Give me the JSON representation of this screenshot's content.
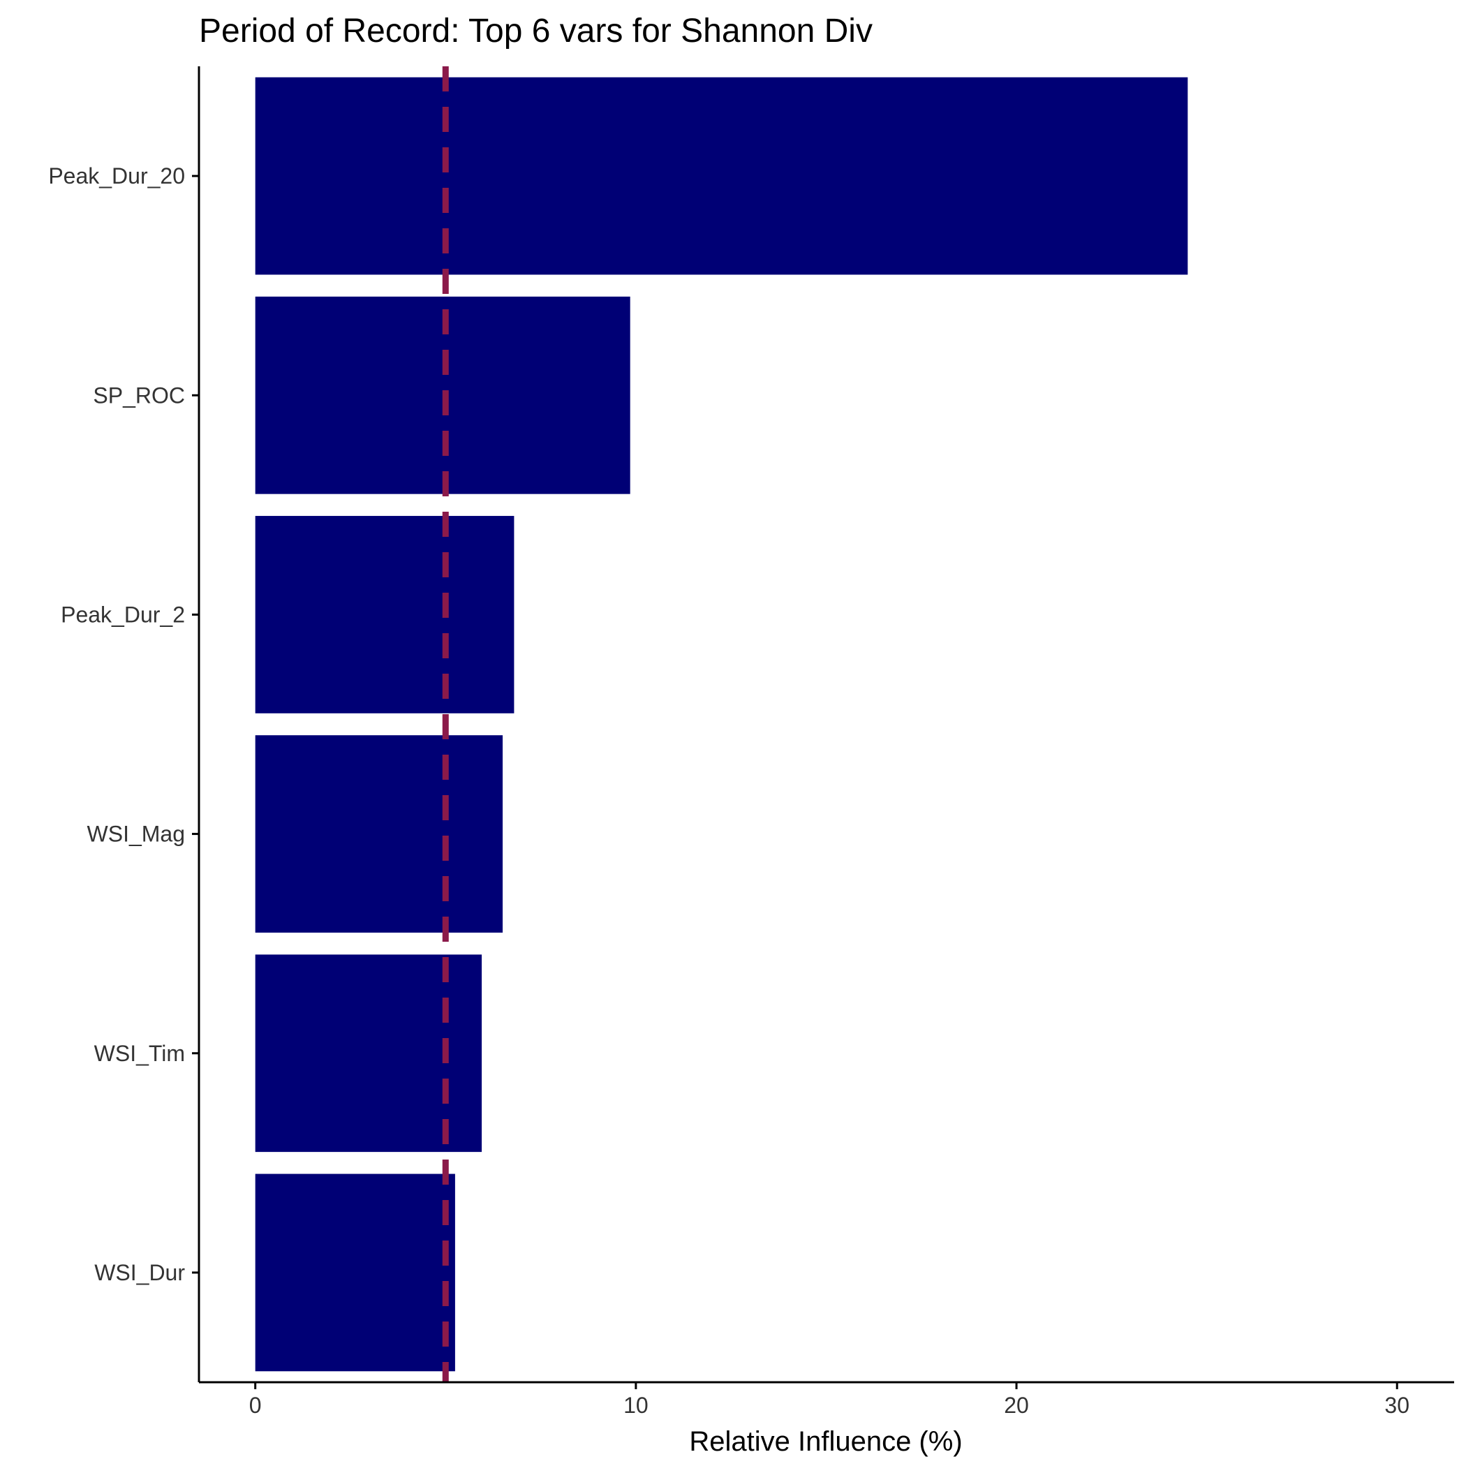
{
  "chart_data": {
    "type": "bar",
    "orientation": "horizontal",
    "title": "Period of Record: Top 6 vars for Shannon Div",
    "xlabel": "Relative Influence (%)",
    "ylabel": "",
    "categories": [
      "Peak_Dur_20",
      "SP_ROC",
      "Peak_Dur_2",
      "WSI_Mag",
      "WSI_Tim",
      "WSI_Dur"
    ],
    "values": [
      24.5,
      9.85,
      6.8,
      6.5,
      5.95,
      5.25
    ],
    "xlim": [
      -1.48,
      31.5
    ],
    "xticks": [
      0,
      10,
      20,
      30
    ],
    "xtick_labels": [
      "0",
      "10",
      "20",
      "30"
    ],
    "reference_line": {
      "value": 5,
      "style": "dashed"
    },
    "grid": false,
    "legend": "none",
    "colors": {
      "bar": "#000075",
      "reference_line": "#8b1a4a",
      "axis": "#000000"
    }
  }
}
